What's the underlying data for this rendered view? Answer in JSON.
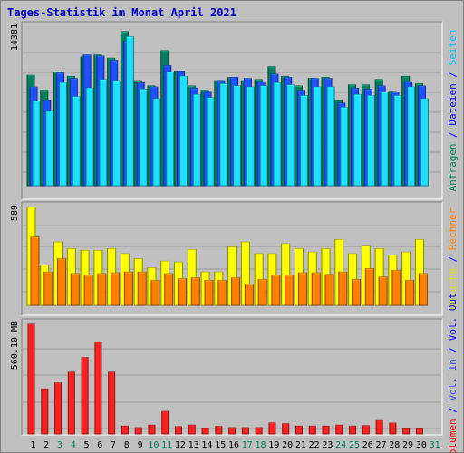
{
  "chart_data": [
    {
      "type": "bar",
      "title": "Tages-Statistik im Monat April 2021",
      "ylabel_parts": [
        {
          "text": "Anfragen",
          "color": "#00805c"
        },
        {
          "text": " / ",
          "color": "#0000ff"
        },
        {
          "text": "Dateien",
          "color": "#0000ff"
        },
        {
          "text": " / ",
          "color": "#0000ff"
        },
        {
          "text": "Seiten",
          "color": "#00c0ff"
        }
      ],
      "ymax_label": "14381",
      "ylim": [
        0,
        14381
      ],
      "grid": true,
      "x": [
        1,
        2,
        3,
        4,
        5,
        6,
        7,
        8,
        9,
        10,
        11,
        12,
        13,
        14,
        15,
        16,
        17,
        18,
        19,
        20,
        21,
        22,
        23,
        24,
        25,
        26,
        27,
        28,
        29,
        30,
        31
      ],
      "series": [
        {
          "name": "Anfragen",
          "color": "#008060",
          "values": [
            10300,
            8900,
            10600,
            10200,
            12000,
            12200,
            11900,
            14381,
            9800,
            9300,
            12600,
            10700,
            9300,
            8900,
            9800,
            10100,
            9800,
            9900,
            11100,
            10200,
            9300,
            10000,
            10100,
            8000,
            9400,
            9400,
            9900,
            8800,
            10200,
            9500,
            null
          ]
        },
        {
          "name": "Dateien",
          "color": "#1e50ff",
          "values": [
            9200,
            8000,
            10500,
            10000,
            12200,
            12100,
            11700,
            13500,
            9600,
            9200,
            11200,
            10700,
            9100,
            8800,
            9800,
            10100,
            10000,
            9700,
            10400,
            10100,
            8900,
            10000,
            10000,
            7700,
            9100,
            9000,
            9300,
            8700,
            9700,
            9300,
            null
          ]
        },
        {
          "name": "Seiten",
          "color": "#1ee0ff",
          "values": [
            7900,
            7000,
            9600,
            8300,
            9100,
            9900,
            9800,
            13900,
            9000,
            8100,
            10600,
            10200,
            8500,
            8200,
            9500,
            9300,
            9200,
            9300,
            9600,
            9400,
            8400,
            9200,
            9200,
            7300,
            8500,
            8400,
            8700,
            8400,
            9200,
            8100,
            null
          ]
        }
      ]
    },
    {
      "type": "bar",
      "ylabel_parts": [
        {
          "text": "Besuche",
          "color": "#e0e000"
        },
        {
          "text": " / ",
          "color": "#0000ff"
        },
        {
          "text": "Rechner",
          "color": "#ff8000"
        }
      ],
      "ymax_label": "589",
      "ylim": [
        0,
        589
      ],
      "grid": true,
      "x": [
        1,
        2,
        3,
        4,
        5,
        6,
        7,
        8,
        9,
        10,
        11,
        12,
        13,
        14,
        15,
        16,
        17,
        18,
        19,
        20,
        21,
        22,
        23,
        24,
        25,
        26,
        27,
        28,
        29,
        30,
        31
      ],
      "series": [
        {
          "name": "Besuche",
          "color": "#ffff00",
          "values": [
            589,
            240,
            380,
            340,
            330,
            330,
            340,
            310,
            280,
            225,
            265,
            260,
            335,
            200,
            200,
            350,
            380,
            310,
            310,
            370,
            340,
            320,
            340,
            395,
            310,
            360,
            340,
            300,
            320,
            395,
            null
          ]
        },
        {
          "name": "Rechner",
          "color": "#ff8000",
          "values": [
            410,
            200,
            280,
            190,
            180,
            190,
            195,
            200,
            200,
            150,
            190,
            160,
            165,
            150,
            150,
            165,
            125,
            155,
            180,
            180,
            195,
            195,
            185,
            200,
            155,
            220,
            170,
            210,
            150,
            190,
            null
          ]
        }
      ]
    },
    {
      "type": "bar",
      "ylabel_parts": [
        {
          "text": "Volumen",
          "color": "#ff0000"
        },
        {
          "text": " / ",
          "color": "#0000ff"
        },
        {
          "text": "Vol. In",
          "color": "#3050ff"
        },
        {
          "text": " / ",
          "color": "#0000ff"
        },
        {
          "text": "Vol. Out",
          "color": "#0000ff"
        }
      ],
      "ymax_label": "560.10 MB",
      "ylim": [
        0,
        560.1
      ],
      "grid": true,
      "x": [
        1,
        2,
        3,
        4,
        5,
        6,
        7,
        8,
        9,
        10,
        11,
        12,
        13,
        14,
        15,
        16,
        17,
        18,
        19,
        20,
        21,
        22,
        23,
        24,
        25,
        26,
        27,
        28,
        29,
        30,
        31
      ],
      "series": [
        {
          "name": "Volumen",
          "color": "#ff2020",
          "values": [
            560.1,
            230,
            260,
            315,
            390,
            470,
            315,
            40,
            32,
            45,
            115,
            37,
            45,
            30,
            38,
            32,
            32,
            32,
            56,
            52,
            40,
            40,
            40,
            45,
            40,
            42,
            68,
            55,
            30,
            30,
            null
          ]
        }
      ]
    }
  ],
  "x_labels": [
    "1",
    "2",
    "3",
    "4",
    "5",
    "6",
    "7",
    "8",
    "9",
    "10",
    "11",
    "12",
    "13",
    "14",
    "15",
    "16",
    "17",
    "18",
    "19",
    "20",
    "21",
    "22",
    "23",
    "24",
    "25",
    "26",
    "27",
    "28",
    "29",
    "30",
    "31"
  ],
  "weekend_days": [
    3,
    4,
    10,
    11,
    17,
    18,
    24,
    25,
    31
  ],
  "weekend_label_color": "#00805c",
  "weekday_label_color": "#000000"
}
